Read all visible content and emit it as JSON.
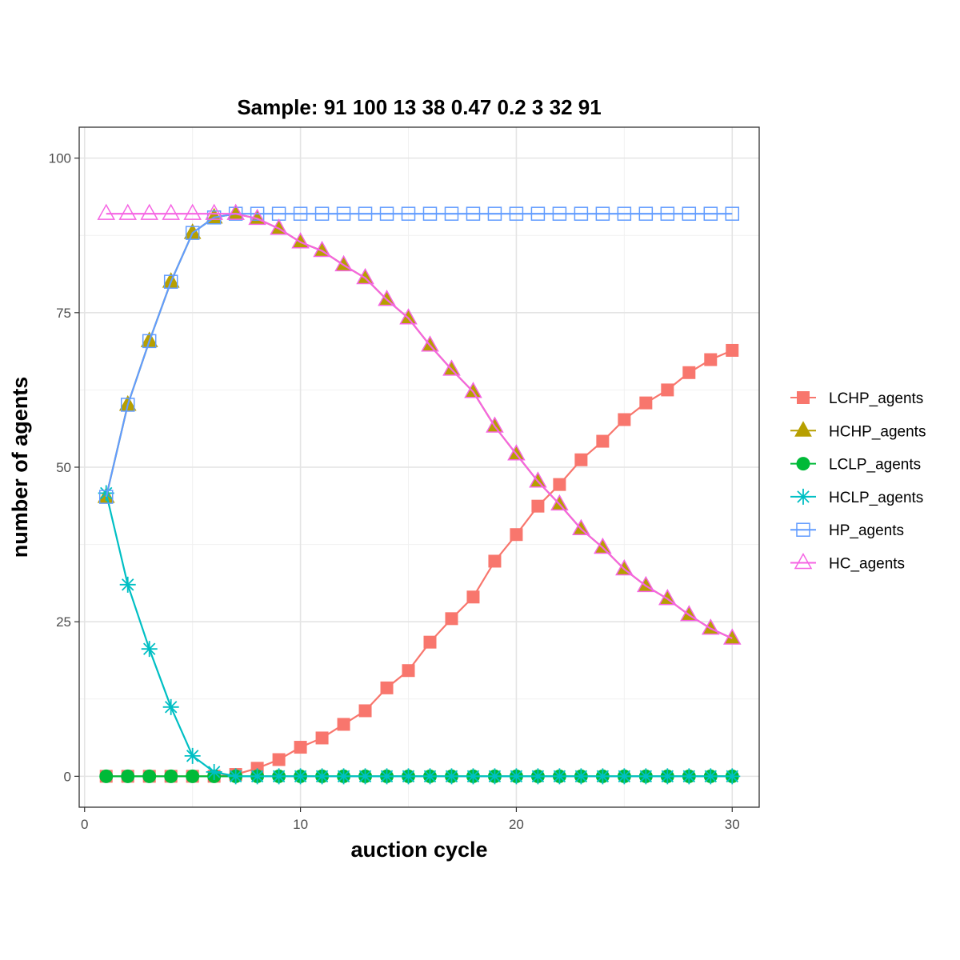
{
  "chart_data": {
    "type": "line",
    "title": "Sample: 91 100 13 38 0.47 0.2 3 32 91",
    "xlabel": "auction cycle",
    "ylabel": "number of agents",
    "xlim": [
      -0.25,
      31.25
    ],
    "ylim": [
      -5,
      105
    ],
    "xticks": [
      0,
      10,
      20,
      30
    ],
    "xtick_labels": [
      "0",
      "10",
      "20",
      "30"
    ],
    "yticks": [
      0,
      25,
      50,
      75,
      100
    ],
    "ytick_labels": [
      "0",
      "25",
      "50",
      "75",
      "100"
    ],
    "grid": true,
    "legend_position": "right",
    "x": [
      1,
      2,
      3,
      4,
      5,
      6,
      7,
      8,
      9,
      10,
      11,
      12,
      13,
      14,
      15,
      16,
      17,
      18,
      19,
      20,
      21,
      22,
      23,
      24,
      25,
      26,
      27,
      28,
      29,
      30
    ],
    "series": [
      {
        "name": "LCHP_agents",
        "color": "#F8766D",
        "marker": "filled-square",
        "values": [
          0,
          0,
          0,
          0,
          0,
          0,
          0.3,
          1.3,
          2.7,
          4.7,
          6.2,
          8.4,
          10.6,
          14.3,
          17.1,
          21.7,
          25.5,
          29,
          34.8,
          39.1,
          43.7,
          47.2,
          51.2,
          54.2,
          57.7,
          60.4,
          62.5,
          65.3,
          67.4,
          68.9
        ]
      },
      {
        "name": "HCHP_agents",
        "color": "#B79F00",
        "marker": "filled-triangle",
        "values": [
          45.2,
          60.1,
          70.4,
          80,
          87.9,
          90.4,
          91,
          90.2,
          88.6,
          86.4,
          85,
          82.7,
          80.6,
          77.1,
          74.1,
          69.7,
          65.8,
          62.2,
          56.6,
          52.1,
          47.7,
          44,
          40,
          37,
          33.5,
          30.8,
          28.7,
          26.1,
          23.9,
          22.3
        ]
      },
      {
        "name": "LCLP_agents",
        "color": "#00BA38",
        "marker": "filled-circle",
        "values": [
          0,
          0,
          0,
          0,
          0,
          0,
          0,
          0,
          0,
          0,
          0,
          0,
          0,
          0,
          0,
          0,
          0,
          0,
          0,
          0,
          0,
          0,
          0,
          0,
          0,
          0,
          0,
          0,
          0,
          0
        ]
      },
      {
        "name": "HCLP_agents",
        "color": "#00BFC4",
        "marker": "asterisk",
        "values": [
          45.8,
          31,
          20.6,
          11.2,
          3.3,
          0.7,
          0,
          0,
          0,
          0,
          0,
          0,
          0,
          0,
          0,
          0,
          0,
          0,
          0,
          0,
          0,
          0,
          0,
          0,
          0,
          0,
          0,
          0,
          0,
          0
        ]
      },
      {
        "name": "HP_agents",
        "color": "#619CFF",
        "marker": "open-square",
        "values": [
          45.2,
          60.1,
          70.4,
          80,
          87.9,
          90.4,
          91,
          91,
          91,
          91,
          91,
          91,
          91,
          91,
          91,
          91,
          91,
          91,
          91,
          91,
          91,
          91,
          91,
          91,
          91,
          91,
          91,
          91,
          91,
          91
        ]
      },
      {
        "name": "HC_agents",
        "color": "#F564E3",
        "marker": "open-triangle",
        "values": [
          91,
          91,
          91,
          91,
          91,
          91,
          91,
          90.2,
          88.6,
          86.4,
          85,
          82.7,
          80.6,
          77.1,
          74.1,
          69.7,
          65.8,
          62.2,
          56.6,
          52.1,
          47.7,
          44,
          40,
          37,
          33.5,
          30.8,
          28.7,
          26.1,
          23.9,
          22.3
        ]
      }
    ]
  }
}
